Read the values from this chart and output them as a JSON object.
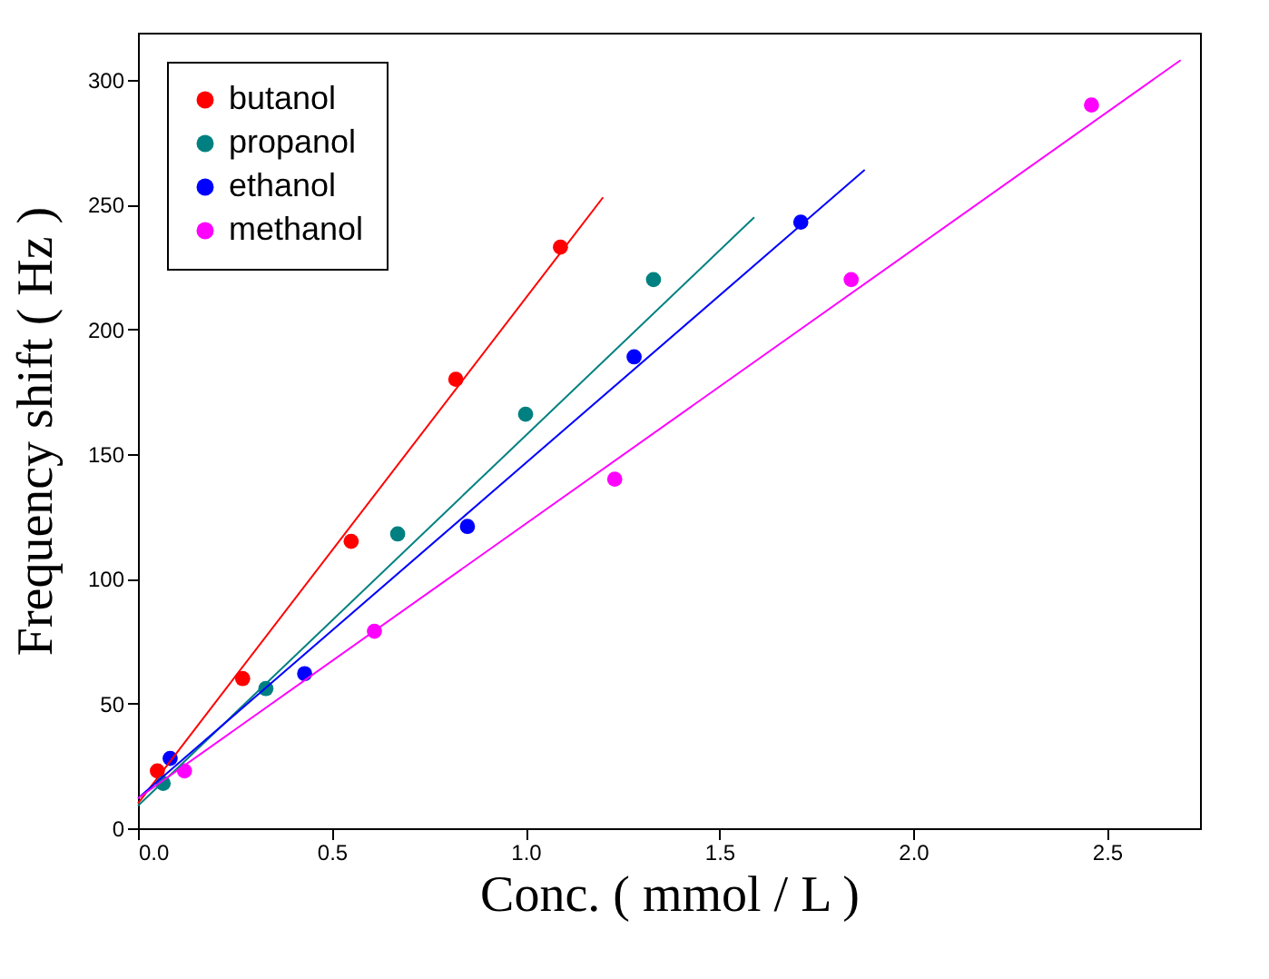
{
  "chart_data": {
    "type": "scatter",
    "xlabel": "Conc. ( mmol / L )",
    "ylabel": "Frequency shift ( Hz )",
    "xlim": [
      0,
      2.74
    ],
    "ylim": [
      0,
      319
    ],
    "xticks": [
      {
        "value": 0,
        "label": "0.0"
      },
      {
        "value": 0.5,
        "label": "0.5"
      },
      {
        "value": 1,
        "label": "1.0"
      },
      {
        "value": 1.5,
        "label": "1.5"
      },
      {
        "value": 2,
        "label": "2.0"
      },
      {
        "value": 2.5,
        "label": "2.5"
      }
    ],
    "yticks": [
      0,
      50,
      100,
      150,
      200,
      250,
      300
    ],
    "legend": "top left",
    "marker": "circle",
    "series": [
      {
        "name": "butanol",
        "color": "#ff0000",
        "x": [
          0.05,
          0.27,
          0.55,
          0.82,
          1.09
        ],
        "values": [
          23,
          60,
          115,
          180,
          233
        ]
      },
      {
        "name": "propanol",
        "color": "#008080",
        "x": [
          0.065,
          0.33,
          0.67,
          1.0,
          1.33
        ],
        "values": [
          18,
          56,
          118,
          166,
          220
        ]
      },
      {
        "name": "ethanol",
        "color": "#0000ff",
        "x": [
          0.083,
          0.43,
          0.85,
          1.28,
          1.71
        ],
        "values": [
          28,
          62,
          121,
          189,
          243
        ]
      },
      {
        "name": "methanol",
        "color": "#ff00ff",
        "x": [
          0.12,
          0.61,
          1.23,
          1.84,
          2.46
        ],
        "values": [
          23,
          79,
          140,
          220,
          290
        ]
      },
      {
        "type": "line",
        "marker": "none",
        "color": "#ff0000",
        "x": [
          0,
          1.2
        ],
        "values": [
          10,
          253
        ]
      },
      {
        "type": "line",
        "marker": "none",
        "color": "#008080",
        "x": [
          0,
          1.59
        ],
        "values": [
          9,
          245
        ]
      },
      {
        "type": "line",
        "marker": "none",
        "color": "#0000ff",
        "x": [
          0,
          1.875
        ],
        "values": [
          12,
          264
        ]
      },
      {
        "type": "line",
        "marker": "none",
        "color": "#ff00ff",
        "x": [
          0,
          2.69
        ],
        "values": [
          12,
          308
        ]
      }
    ]
  }
}
